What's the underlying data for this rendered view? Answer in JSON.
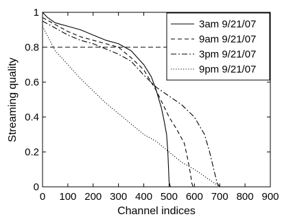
{
  "chart_data": {
    "type": "line",
    "xlabel": "Channel indices",
    "ylabel": "Streaming quality",
    "xlim": [
      0,
      900
    ],
    "ylim": [
      0,
      1
    ],
    "xticks": [
      0,
      100,
      200,
      300,
      400,
      500,
      600,
      700,
      800,
      900
    ],
    "yticks": [
      0,
      0.2,
      0.4,
      0.6,
      0.8,
      1
    ],
    "ytick_labels": [
      "0",
      "0.2",
      "0.4",
      "0.6",
      "0.8",
      "1"
    ],
    "grid": false,
    "legend_position": "top-right",
    "reference_line": {
      "y": 0.8,
      "style": "dashed"
    },
    "series": [
      {
        "name": "3am 9/21/07",
        "style": "solid",
        "color": "#000000",
        "x": [
          0,
          20,
          50,
          100,
          150,
          200,
          250,
          300,
          350,
          400,
          430,
          450,
          470,
          480,
          490,
          495,
          498,
          500,
          505
        ],
        "y": [
          1.0,
          0.97,
          0.94,
          0.92,
          0.9,
          0.87,
          0.84,
          0.82,
          0.78,
          0.7,
          0.63,
          0.55,
          0.45,
          0.38,
          0.3,
          0.2,
          0.1,
          0.03,
          0.0
        ]
      },
      {
        "name": "9am 9/21/07",
        "style": "dashed",
        "color": "#000000",
        "x": [
          0,
          50,
          100,
          150,
          200,
          250,
          300,
          350,
          400,
          450,
          500,
          530,
          560,
          575,
          585,
          590,
          595
        ],
        "y": [
          0.97,
          0.93,
          0.89,
          0.86,
          0.84,
          0.82,
          0.8,
          0.74,
          0.67,
          0.55,
          0.4,
          0.33,
          0.25,
          0.15,
          0.07,
          0.02,
          0.0
        ]
      },
      {
        "name": "3pm 9/21/07",
        "style": "dashdot",
        "color": "#000000",
        "x": [
          0,
          50,
          100,
          150,
          200,
          250,
          300,
          350,
          400,
          450,
          500,
          550,
          600,
          640,
          660,
          680,
          690,
          700
        ],
        "y": [
          0.95,
          0.91,
          0.87,
          0.84,
          0.82,
          0.79,
          0.76,
          0.72,
          0.64,
          0.57,
          0.52,
          0.47,
          0.4,
          0.3,
          0.2,
          0.08,
          0.02,
          0.0
        ]
      },
      {
        "name": "9pm 9/21/07",
        "style": "dotted",
        "color": "#000000",
        "x": [
          0,
          25,
          50,
          100,
          150,
          200,
          250,
          300,
          350,
          400,
          450,
          500,
          550,
          600,
          650,
          680,
          700
        ],
        "y": [
          0.92,
          0.85,
          0.78,
          0.7,
          0.62,
          0.55,
          0.48,
          0.42,
          0.36,
          0.3,
          0.26,
          0.2,
          0.14,
          0.1,
          0.05,
          0.02,
          0.0
        ]
      }
    ]
  }
}
